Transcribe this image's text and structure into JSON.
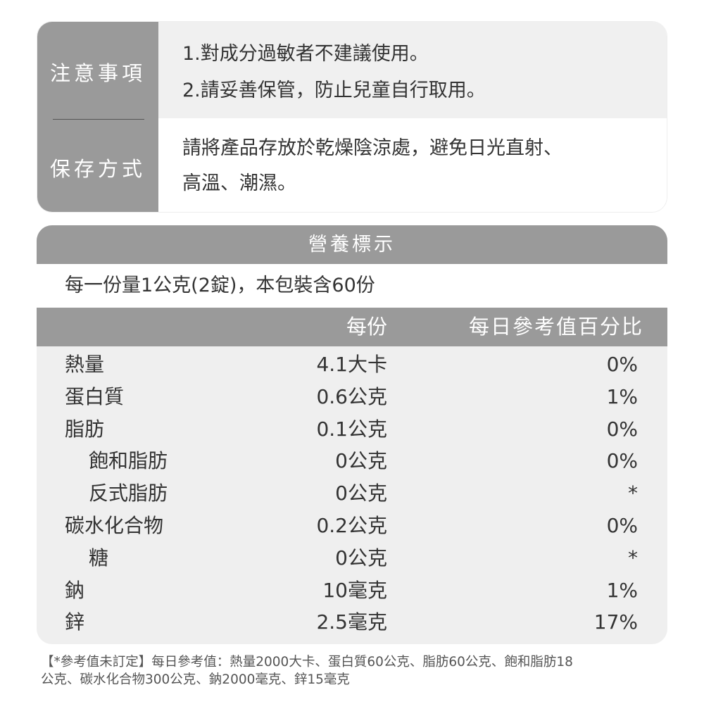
{
  "notes": {
    "label": "注意事項",
    "lines": [
      "1.對成分過敏者不建議使用。",
      "2.請妥善保管，防止兒童自行取用。"
    ]
  },
  "storage": {
    "label": "保存方式",
    "lines": [
      "請將產品存放於乾燥陰涼處，避免日光直射、",
      "高溫、潮濕。"
    ]
  },
  "nutrition": {
    "title": "營養標示",
    "serving": "每一份量1公克(2錠)，本包裝含60份",
    "col_per_serving": "每份",
    "col_daily": "每日參考值百分比",
    "rows": [
      {
        "name": "熱量",
        "value": "4.1大卡",
        "pct": "0%",
        "indent": false
      },
      {
        "name": "蛋白質",
        "value": "0.6公克",
        "pct": "1%",
        "indent": false
      },
      {
        "name": "脂肪",
        "value": "0.1公克",
        "pct": "0%",
        "indent": false
      },
      {
        "name": "飽和脂肪",
        "value": "0公克",
        "pct": "0%",
        "indent": true
      },
      {
        "name": "反式脂肪",
        "value": "0公克",
        "pct": "*",
        "indent": true
      },
      {
        "name": "碳水化合物",
        "value": "0.2公克",
        "pct": "0%",
        "indent": false
      },
      {
        "name": "糖",
        "value": "0公克",
        "pct": "*",
        "indent": true
      },
      {
        "name": "鈉",
        "value": "10毫克",
        "pct": "1%",
        "indent": false
      },
      {
        "name": "鋅",
        "value": "2.5毫克",
        "pct": "17%",
        "indent": false
      }
    ]
  },
  "footnote": [
    "【*參考值未訂定】每日參考值：熱量2000大卡、蛋白質60公克、脂肪60公克、飽和脂肪18",
    "公克、碳水化合物300公克、鈉2000毫克、鋅15毫克"
  ],
  "colors": {
    "header_gray": "#9a9a9a",
    "light_bg": "#efefef",
    "text": "#333333"
  }
}
